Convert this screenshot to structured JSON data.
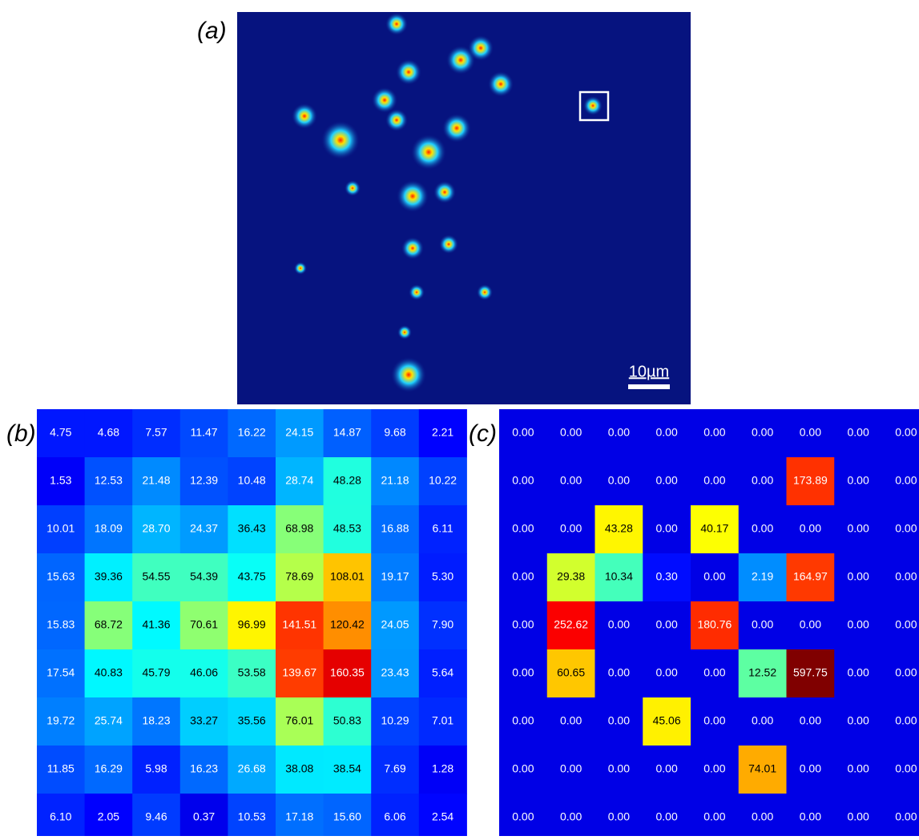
{
  "panels": [
    {
      "label": "(a)",
      "scale_bar": "10µm"
    },
    {
      "label": "(b)",
      "grid": [
        [
          "4.75",
          "4.68",
          "7.57",
          "11.47",
          "16.22",
          "24.15",
          "14.87",
          "9.68",
          "2.21"
        ],
        [
          "1.53",
          "12.53",
          "21.48",
          "12.39",
          "10.48",
          "28.74",
          "48.28",
          "21.18",
          "10.22"
        ],
        [
          "10.01",
          "18.09",
          "28.70",
          "24.37",
          "36.43",
          "68.98",
          "48.53",
          "16.88",
          "6.11"
        ],
        [
          "15.63",
          "39.36",
          "54.55",
          "54.39",
          "43.75",
          "78.69",
          "108.01",
          "19.17",
          "5.30"
        ],
        [
          "15.83",
          "68.72",
          "41.36",
          "70.61",
          "96.99",
          "141.51",
          "120.42",
          "24.05",
          "7.90"
        ],
        [
          "17.54",
          "40.83",
          "45.79",
          "46.06",
          "53.58",
          "139.67",
          "160.35",
          "23.43",
          "5.64"
        ],
        [
          "19.72",
          "25.74",
          "18.23",
          "33.27",
          "35.56",
          "76.01",
          "50.83",
          "10.29",
          "7.01"
        ],
        [
          "11.85",
          "16.29",
          "5.98",
          "16.23",
          "26.68",
          "38.08",
          "38.54",
          "7.69",
          "1.28"
        ],
        [
          "6.10",
          "2.05",
          "9.46",
          "0.37",
          "10.53",
          "17.18",
          "15.60",
          "6.06",
          "2.54"
        ]
      ]
    },
    {
      "label": "(c)",
      "grid": [
        [
          "0.00",
          "0.00",
          "0.00",
          "0.00",
          "0.00",
          "0.00",
          "0.00",
          "0.00",
          "0.00"
        ],
        [
          "0.00",
          "0.00",
          "0.00",
          "0.00",
          "0.00",
          "0.00",
          "173.89",
          "0.00",
          "0.00"
        ],
        [
          "0.00",
          "0.00",
          "43.28",
          "0.00",
          "40.17",
          "0.00",
          "0.00",
          "0.00",
          "0.00"
        ],
        [
          "0.00",
          "29.38",
          "10.34",
          "0.30",
          "0.00",
          "2.19",
          "164.97",
          "0.00",
          "0.00"
        ],
        [
          "0.00",
          "252.62",
          "0.00",
          "0.00",
          "180.76",
          "0.00",
          "0.00",
          "0.00",
          "0.00"
        ],
        [
          "0.00",
          "60.65",
          "0.00",
          "0.00",
          "0.00",
          "12.52",
          "597.75",
          "0.00",
          "0.00"
        ],
        [
          "0.00",
          "0.00",
          "0.00",
          "45.06",
          "0.00",
          "0.00",
          "0.00",
          "0.00",
          "0.00"
        ],
        [
          "0.00",
          "0.00",
          "0.00",
          "0.00",
          "0.00",
          "74.01",
          "0.00",
          "0.00",
          "0.00"
        ],
        [
          "0.00",
          "0.00",
          "0.00",
          "0.00",
          "0.00",
          "0.00",
          "0.00",
          "0.00",
          "0.00"
        ]
      ]
    }
  ]
}
